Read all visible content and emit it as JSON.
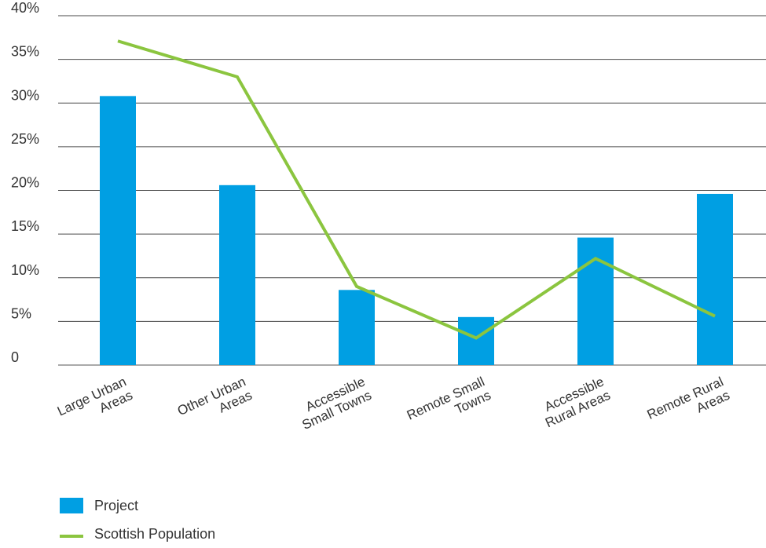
{
  "chart_data": {
    "type": "bar",
    "categories": [
      [
        "Large Urban",
        "Areas"
      ],
      [
        "Other Urban",
        "Areas"
      ],
      [
        "Accessible",
        "Small Towns"
      ],
      [
        "Remote Small",
        "Towns"
      ],
      [
        "Accessible",
        "Rural Areas"
      ],
      [
        "Remote Rural",
        "Areas"
      ]
    ],
    "series": [
      {
        "name": "Project",
        "type": "bar",
        "color": "#009fe3",
        "values": [
          30.8,
          20.6,
          8.6,
          5.5,
          14.6,
          19.6
        ]
      },
      {
        "name": "Scottish Population",
        "type": "line",
        "color": "#8bc53f",
        "values": [
          37.1,
          33.0,
          9.0,
          3.1,
          12.2,
          5.6
        ]
      }
    ],
    "ylim": [
      0,
      40
    ],
    "yticks": [
      0,
      5,
      10,
      15,
      20,
      25,
      30,
      35,
      40
    ],
    "ytick_labels": [
      "0",
      "5%",
      "10%",
      "15%",
      "20%",
      "25%",
      "30%",
      "35%",
      "40%"
    ],
    "grid": true,
    "legend_position": "bottom-left"
  }
}
